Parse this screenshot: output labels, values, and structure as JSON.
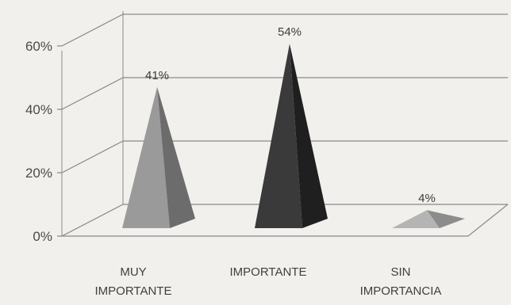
{
  "chart_data": {
    "type": "bar",
    "style": "3d-pyramid",
    "categories": [
      "MUY IMPORTANTE",
      "IMPORTANTE",
      "SIN IMPORTANCIA"
    ],
    "category_lines": [
      [
        "MUY",
        "IMPORTANTE"
      ],
      [
        "IMPORTANTE"
      ],
      [
        "SIN",
        "IMPORTANCIA"
      ]
    ],
    "values": [
      41,
      54,
      4
    ],
    "data_labels": [
      "41%",
      "54%",
      "4%"
    ],
    "y_ticks": [
      "0%",
      "20%",
      "40%",
      "60%"
    ],
    "y_tick_values": [
      0,
      20,
      40,
      60
    ],
    "ylim": [
      0,
      60
    ],
    "grid": true,
    "legend": "none",
    "colors": {
      "bar_light": [
        "#9a9a9a",
        "#3a3a3a",
        "#b4b4b4"
      ],
      "bar_dark": [
        "#6c6c6c",
        "#1f1f1f",
        "#8c8c8c"
      ],
      "grid": "#8a8a8a",
      "text": "#4a4a4a"
    }
  }
}
